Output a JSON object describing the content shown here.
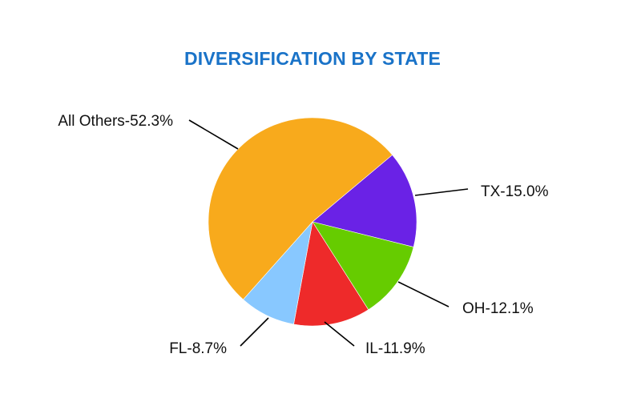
{
  "chart_data": {
    "type": "pie",
    "title": "DIVERSIFICATION BY STATE",
    "legend": "none",
    "slices": [
      {
        "name": "TX",
        "value": 15.0,
        "label": "TX-15.0%",
        "color": "#6a22e6"
      },
      {
        "name": "OH",
        "value": 12.1,
        "label": "OH-12.1%",
        "color": "#66cc00"
      },
      {
        "name": "IL",
        "value": 11.9,
        "label": "IL-11.9%",
        "color": "#ee2a2a"
      },
      {
        "name": "FL",
        "value": 8.7,
        "label": "FL-8.7%",
        "color": "#88c8ff"
      },
      {
        "name": "All Others",
        "value": 52.3,
        "label": "All Others-52.3%",
        "color": "#f8aa1c"
      }
    ]
  }
}
